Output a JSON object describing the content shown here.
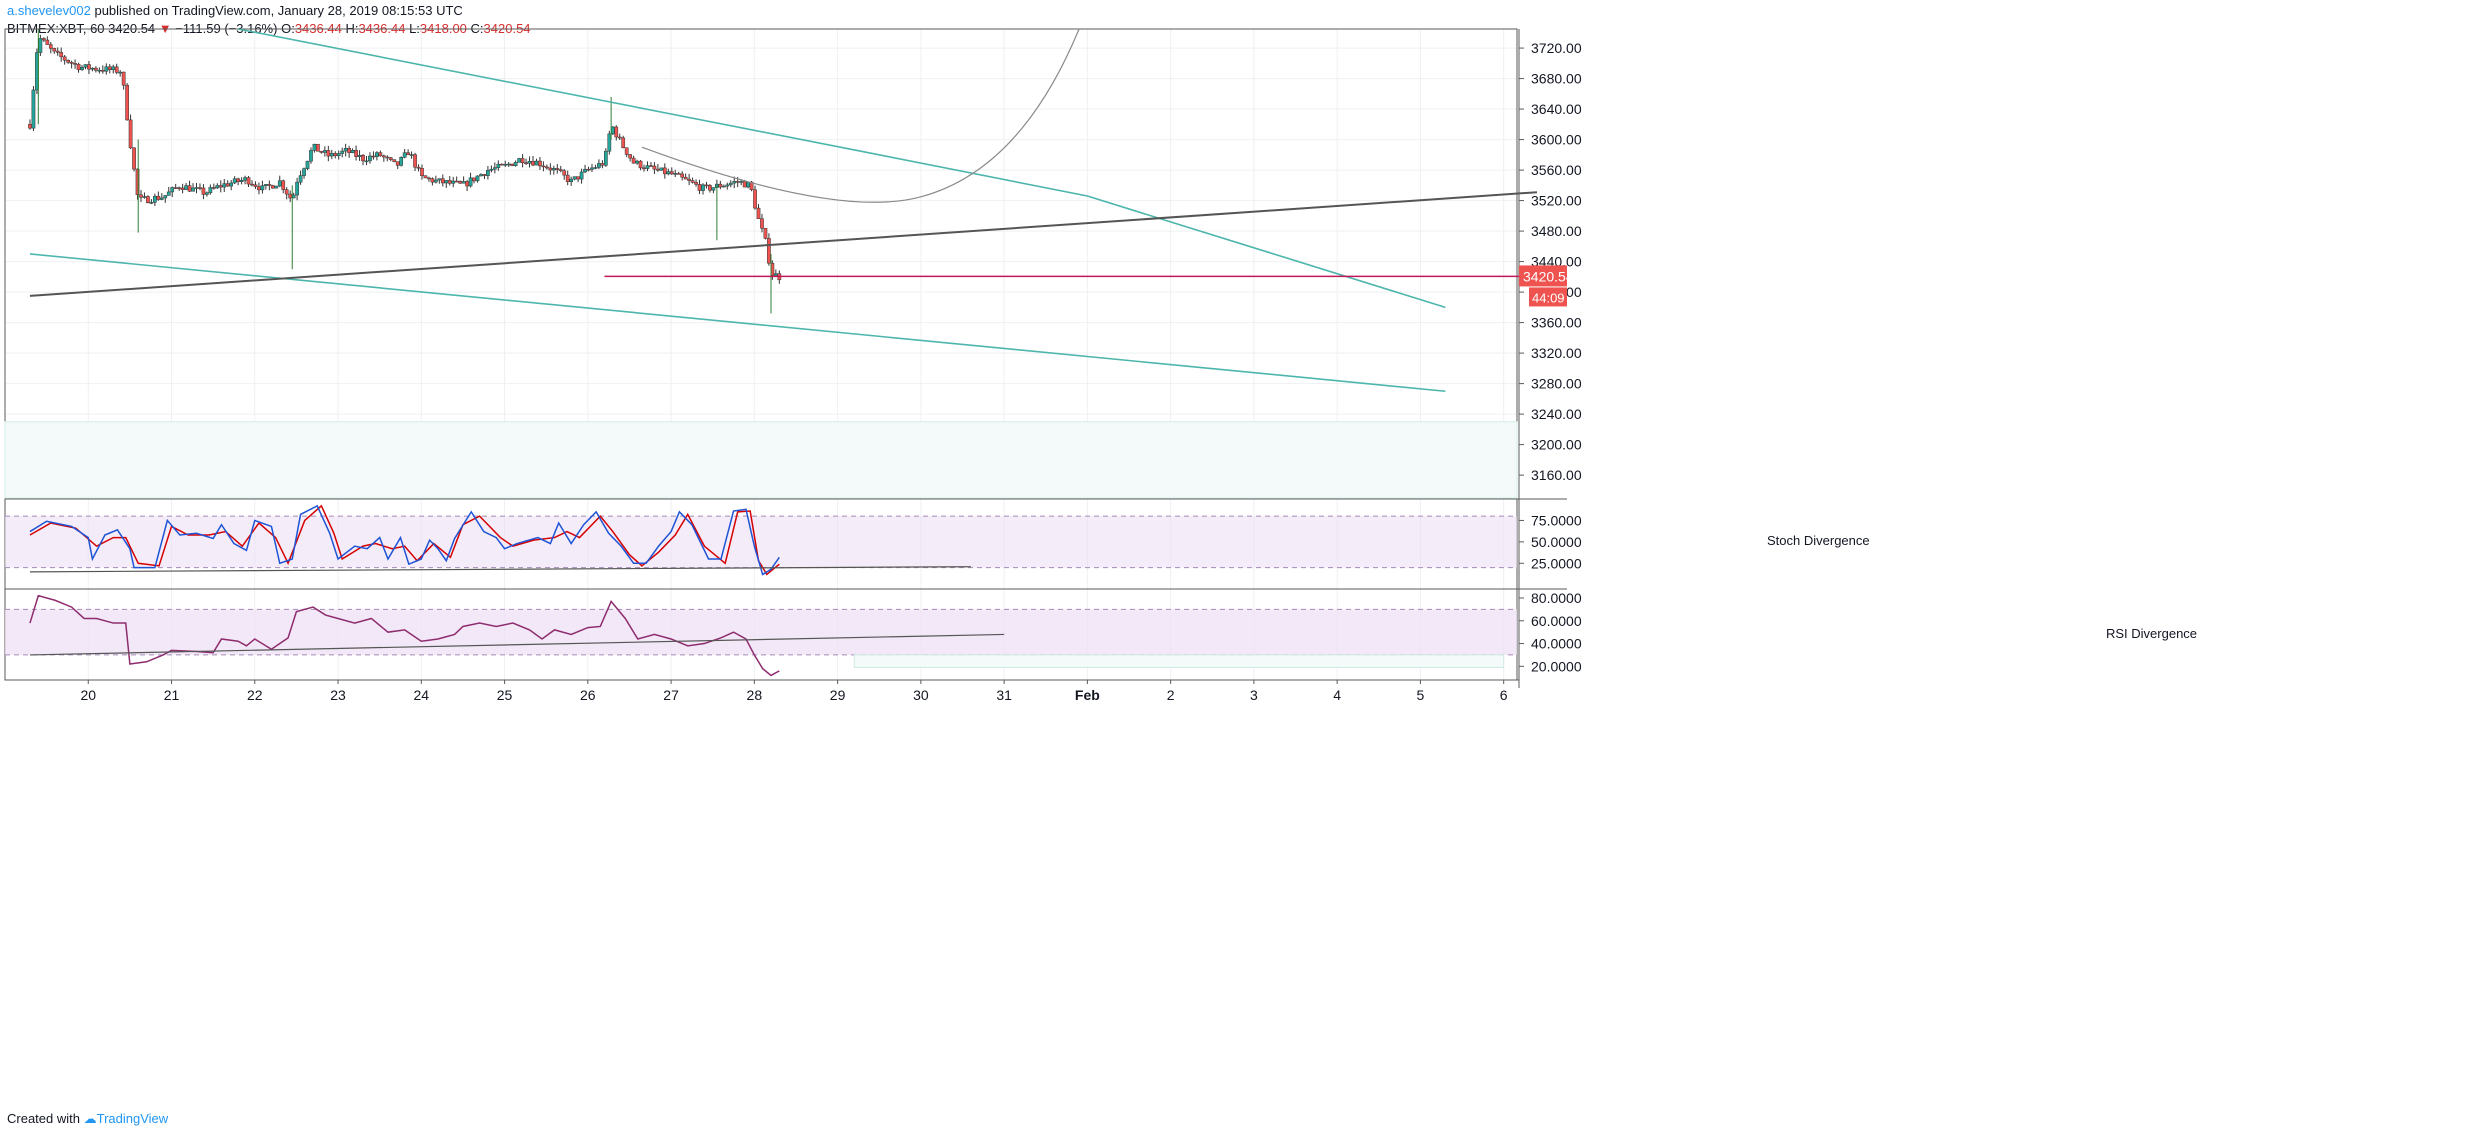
{
  "header": {
    "author": "a.shevelev002",
    "published": "published on TradingView.com, January 28, 2019 08:15:53 UTC",
    "symbol": "BITMEX:XBT, 60",
    "last": "3420.54",
    "change": "−111.59 (−3.16%)",
    "o_label": "O:",
    "o": "3436.44",
    "h_label": "H:",
    "h": "3436.44",
    "l_label": "L:",
    "l": "3418.00",
    "c_label": "C:",
    "c": "3420.54"
  },
  "footer": {
    "created": "Created with",
    "brand": "TradingView"
  },
  "colors": {
    "up": "#26a69a",
    "down": "#ef5350",
    "channel": "#4db6ac",
    "trend": "#555555",
    "price_line": "#c2185b",
    "stoch_k": "#1e54d6",
    "stoch_d": "#d50000",
    "rsi": "#8e2c6e",
    "band": "#ede0f5"
  },
  "chart_data": {
    "type": "candlestick",
    "price_axis": {
      "ticks": [
        "3720.00",
        "3680.00",
        "3640.00",
        "3600.00",
        "3560.00",
        "3520.00",
        "3480.00",
        "3440.00",
        "3400.00",
        "3360.00",
        "3320.00",
        "3280.00",
        "3240.00",
        "3200.00",
        "3160.00"
      ],
      "ylim": [
        3130,
        3745
      ]
    },
    "x_ticks": [
      "20",
      "21",
      "22",
      "23",
      "24",
      "25",
      "26",
      "27",
      "28",
      "29",
      "30",
      "31",
      "Feb",
      "2",
      "3",
      "4",
      "5",
      "6"
    ],
    "last_price_label": "3420.54",
    "countdown_label": "44:09",
    "price_path": [
      [
        19.3,
        3620
      ],
      [
        19.4,
        3735
      ],
      [
        19.6,
        3712
      ],
      [
        19.9,
        3695
      ],
      [
        20.4,
        3690
      ],
      [
        20.5,
        3600
      ],
      [
        20.6,
        3520
      ],
      [
        20.9,
        3525
      ],
      [
        21.1,
        3540
      ],
      [
        21.4,
        3530
      ],
      [
        21.6,
        3540
      ],
      [
        21.9,
        3548
      ],
      [
        22.1,
        3535
      ],
      [
        22.3,
        3545
      ],
      [
        22.45,
        3520
      ],
      [
        22.5,
        3545
      ],
      [
        22.7,
        3590
      ],
      [
        22.9,
        3578
      ],
      [
        23.1,
        3585
      ],
      [
        23.3,
        3575
      ],
      [
        23.5,
        3580
      ],
      [
        23.7,
        3565
      ],
      [
        23.85,
        3585
      ],
      [
        24.0,
        3550
      ],
      [
        24.2,
        3545
      ],
      [
        24.5,
        3540
      ],
      [
        24.8,
        3560
      ],
      [
        25.0,
        3565
      ],
      [
        25.2,
        3575
      ],
      [
        25.4,
        3570
      ],
      [
        25.6,
        3560
      ],
      [
        25.8,
        3545
      ],
      [
        26.0,
        3560
      ],
      [
        26.2,
        3570
      ],
      [
        26.28,
        3620
      ],
      [
        26.4,
        3595
      ],
      [
        26.55,
        3570
      ],
      [
        26.8,
        3560
      ],
      [
        27.0,
        3555
      ],
      [
        27.2,
        3545
      ],
      [
        27.4,
        3535
      ],
      [
        27.6,
        3540
      ],
      [
        27.8,
        3545
      ],
      [
        27.95,
        3540
      ],
      [
        28.05,
        3495
      ],
      [
        28.15,
        3460
      ],
      [
        28.2,
        3425
      ],
      [
        28.3,
        3420
      ]
    ],
    "lines": [
      {
        "name": "",
        "points": [
          [
            21.8,
            3745
          ],
          [
            29.5,
            3580
          ],
          [
            32.0,
            3526
          ],
          [
            36.3,
            3380
          ]
        ]
      },
      {
        "name": "",
        "points": [
          [
            19.3,
            3450
          ],
          [
            36.3,
            3270
          ]
        ]
      },
      {
        "name": "",
        "points": [
          [
            19.3,
            3395
          ],
          [
            37.4,
            3531
          ]
        ]
      },
      {
        "name": "",
        "points": [
          [
            26.65,
            3590
          ],
          [
            29.0,
            3511
          ],
          [
            30.0,
            3525
          ],
          [
            31.9,
            3745
          ]
        ]
      }
    ],
    "price_line": 3420.54,
    "stoch": {
      "label": "Stoch Divergence",
      "ticks": [
        "75.0000",
        "50.0000",
        "25.0000"
      ],
      "ylim": [
        -5,
        100
      ],
      "band": [
        20,
        80
      ],
      "k": [
        [
          19.3,
          62
        ],
        [
          19.5,
          74
        ],
        [
          19.8,
          68
        ],
        [
          20.0,
          55
        ],
        [
          20.05,
          30
        ],
        [
          20.2,
          58
        ],
        [
          20.35,
          64
        ],
        [
          20.5,
          42
        ],
        [
          20.55,
          20
        ],
        [
          20.8,
          20
        ],
        [
          20.95,
          75
        ],
        [
          21.1,
          58
        ],
        [
          21.3,
          60
        ],
        [
          21.5,
          54
        ],
        [
          21.6,
          70
        ],
        [
          21.75,
          48
        ],
        [
          21.9,
          40
        ],
        [
          22.0,
          75
        ],
        [
          22.2,
          68
        ],
        [
          22.3,
          25
        ],
        [
          22.45,
          30
        ],
        [
          22.55,
          82
        ],
        [
          22.75,
          92
        ],
        [
          22.9,
          60
        ],
        [
          23.0,
          30
        ],
        [
          23.2,
          45
        ],
        [
          23.35,
          42
        ],
        [
          23.5,
          55
        ],
        [
          23.6,
          30
        ],
        [
          23.75,
          55
        ],
        [
          23.85,
          24
        ],
        [
          24.0,
          30
        ],
        [
          24.1,
          52
        ],
        [
          24.2,
          42
        ],
        [
          24.3,
          28
        ],
        [
          24.4,
          54
        ],
        [
          24.6,
          85
        ],
        [
          24.75,
          62
        ],
        [
          24.9,
          55
        ],
        [
          25.0,
          42
        ],
        [
          25.15,
          48
        ],
        [
          25.4,
          55
        ],
        [
          25.55,
          48
        ],
        [
          25.65,
          72
        ],
        [
          25.8,
          48
        ],
        [
          25.95,
          70
        ],
        [
          26.1,
          85
        ],
        [
          26.25,
          60
        ],
        [
          26.4,
          45
        ],
        [
          26.55,
          25
        ],
        [
          26.7,
          25
        ],
        [
          26.85,
          45
        ],
        [
          27.0,
          62
        ],
        [
          27.1,
          85
        ],
        [
          27.25,
          70
        ],
        [
          27.45,
          30
        ],
        [
          27.6,
          30
        ],
        [
          27.75,
          86
        ],
        [
          27.9,
          88
        ],
        [
          28.0,
          45
        ],
        [
          28.1,
          12
        ],
        [
          28.2,
          18
        ],
        [
          28.3,
          32
        ]
      ],
      "d": [
        [
          19.3,
          58
        ],
        [
          19.55,
          72
        ],
        [
          19.85,
          66
        ],
        [
          20.1,
          45
        ],
        [
          20.3,
          55
        ],
        [
          20.45,
          55
        ],
        [
          20.6,
          25
        ],
        [
          20.85,
          22
        ],
        [
          21.0,
          68
        ],
        [
          21.2,
          58
        ],
        [
          21.45,
          58
        ],
        [
          21.65,
          62
        ],
        [
          21.85,
          45
        ],
        [
          22.05,
          72
        ],
        [
          22.25,
          55
        ],
        [
          22.4,
          25
        ],
        [
          22.6,
          75
        ],
        [
          22.8,
          92
        ],
        [
          22.95,
          60
        ],
        [
          23.05,
          30
        ],
        [
          23.3,
          45
        ],
        [
          23.45,
          48
        ],
        [
          23.65,
          42
        ],
        [
          23.8,
          45
        ],
        [
          23.95,
          28
        ],
        [
          24.15,
          48
        ],
        [
          24.35,
          32
        ],
        [
          24.5,
          70
        ],
        [
          24.7,
          80
        ],
        [
          24.95,
          55
        ],
        [
          25.1,
          45
        ],
        [
          25.35,
          52
        ],
        [
          25.6,
          55
        ],
        [
          25.75,
          62
        ],
        [
          25.9,
          55
        ],
        [
          26.15,
          80
        ],
        [
          26.3,
          62
        ],
        [
          26.5,
          35
        ],
        [
          26.65,
          22
        ],
        [
          26.85,
          38
        ],
        [
          27.05,
          58
        ],
        [
          27.2,
          82
        ],
        [
          27.4,
          45
        ],
        [
          27.65,
          25
        ],
        [
          27.8,
          85
        ],
        [
          27.95,
          86
        ],
        [
          28.05,
          28
        ],
        [
          28.15,
          12
        ],
        [
          28.3,
          24
        ]
      ],
      "divergence": [
        [
          19.3,
          15
        ],
        [
          30.6,
          21
        ]
      ]
    },
    "rsi": {
      "label": "RSI Divergence",
      "ticks": [
        "80.0000",
        "60.0000",
        "40.0000",
        "20.0000"
      ],
      "ylim": [
        8,
        87
      ],
      "band": [
        30,
        70
      ],
      "values": [
        [
          19.3,
          58
        ],
        [
          19.4,
          82
        ],
        [
          19.6,
          78
        ],
        [
          19.8,
          72
        ],
        [
          19.95,
          62
        ],
        [
          20.1,
          62
        ],
        [
          20.3,
          58
        ],
        [
          20.45,
          58
        ],
        [
          20.5,
          22
        ],
        [
          20.7,
          24
        ],
        [
          20.9,
          30
        ],
        [
          21.0,
          34
        ],
        [
          21.3,
          33
        ],
        [
          21.5,
          32
        ],
        [
          21.6,
          44
        ],
        [
          21.8,
          42
        ],
        [
          21.9,
          38
        ],
        [
          22.0,
          44
        ],
        [
          22.2,
          35
        ],
        [
          22.4,
          45
        ],
        [
          22.5,
          68
        ],
        [
          22.7,
          72
        ],
        [
          22.85,
          65
        ],
        [
          23.0,
          62
        ],
        [
          23.2,
          58
        ],
        [
          23.4,
          62
        ],
        [
          23.6,
          50
        ],
        [
          23.8,
          52
        ],
        [
          24.0,
          42
        ],
        [
          24.2,
          44
        ],
        [
          24.4,
          48
        ],
        [
          24.5,
          55
        ],
        [
          24.7,
          58
        ],
        [
          24.9,
          55
        ],
        [
          25.1,
          58
        ],
        [
          25.3,
          52
        ],
        [
          25.45,
          44
        ],
        [
          25.6,
          52
        ],
        [
          25.8,
          48
        ],
        [
          26.0,
          54
        ],
        [
          26.15,
          55
        ],
        [
          26.28,
          77
        ],
        [
          26.45,
          62
        ],
        [
          26.6,
          44
        ],
        [
          26.8,
          48
        ],
        [
          27.0,
          44
        ],
        [
          27.2,
          38
        ],
        [
          27.4,
          40
        ],
        [
          27.6,
          45
        ],
        [
          27.75,
          50
        ],
        [
          27.9,
          44
        ],
        [
          28.0,
          30
        ],
        [
          28.1,
          18
        ],
        [
          28.2,
          12
        ],
        [
          28.3,
          16
        ]
      ],
      "divergence": [
        [
          19.3,
          30
        ],
        [
          31.0,
          48
        ]
      ]
    }
  }
}
